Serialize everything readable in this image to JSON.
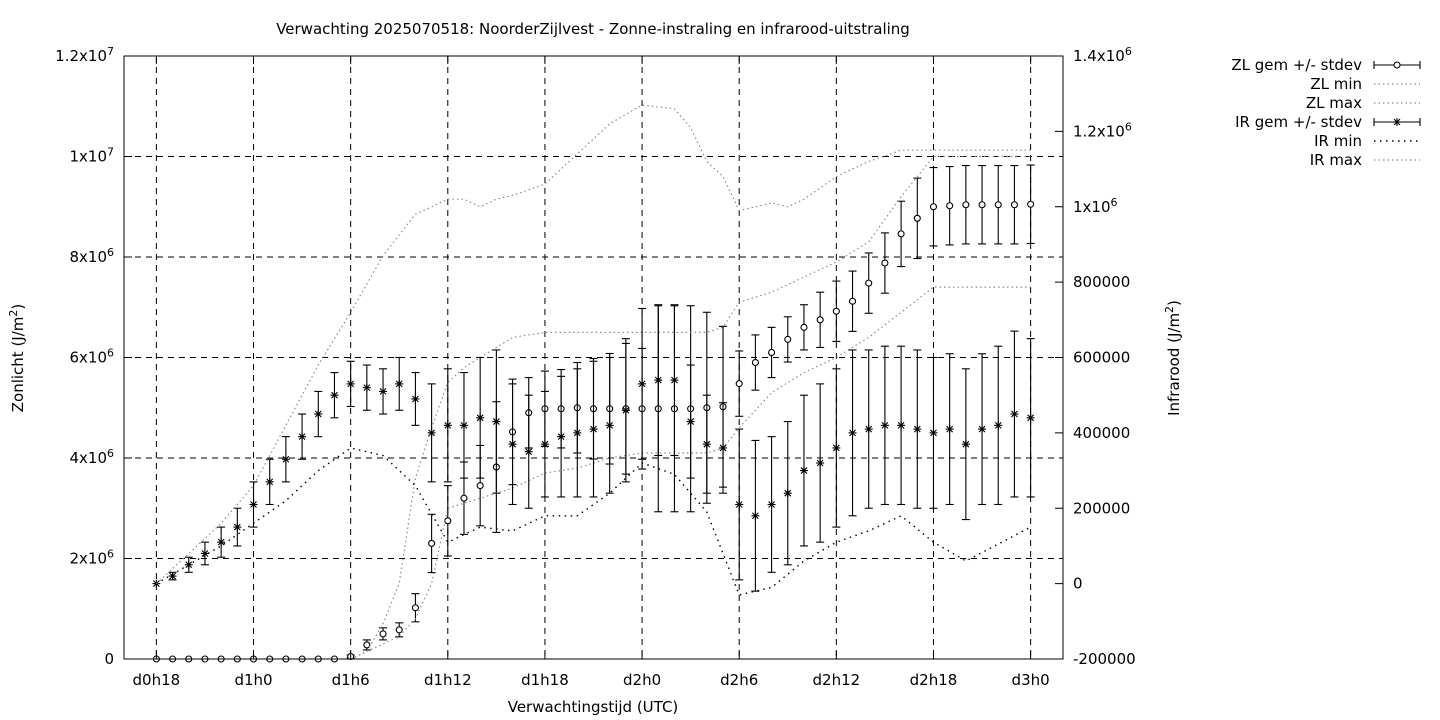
{
  "chart_data": {
    "type": "line",
    "title": "Verwachting 2025070518: NoorderZijlvest - Zonne-instraling en infrarood-uitstraling",
    "xlabel": "Verwachtingstijd (UTC)",
    "ylabel": "Zonlicht (J/m2)",
    "y2label": "Infrarood (J/m2)",
    "x_ticks": [
      "d0h18",
      "d1h0",
      "d1h6",
      "d1h12",
      "d1h18",
      "d2h0",
      "d2h6",
      "d2h12",
      "d2h18",
      "d3h0"
    ],
    "x_range": [
      "d0h16",
      "d3h2"
    ],
    "ylim": [
      0,
      12000000
    ],
    "y2lim": [
      -200000,
      1400000
    ],
    "y_ticks": [
      {
        "value": 0,
        "base": "0",
        "exp": ""
      },
      {
        "value": 2000000,
        "base": "2x10",
        "exp": "6"
      },
      {
        "value": 4000000,
        "base": "4x10",
        "exp": "6"
      },
      {
        "value": 6000000,
        "base": "6x10",
        "exp": "6"
      },
      {
        "value": 8000000,
        "base": "8x10",
        "exp": "6"
      },
      {
        "value": 10000000,
        "base": "1x10",
        "exp": "7"
      },
      {
        "value": 12000000,
        "base": "1.2x10",
        "exp": "7"
      }
    ],
    "y2_ticks": [
      {
        "value": -200000,
        "base": "-200000",
        "exp": ""
      },
      {
        "value": 0,
        "base": "0",
        "exp": ""
      },
      {
        "value": 200000,
        "base": "200000",
        "exp": ""
      },
      {
        "value": 400000,
        "base": "400000",
        "exp": ""
      },
      {
        "value": 600000,
        "base": "600000",
        "exp": ""
      },
      {
        "value": 800000,
        "base": "800000",
        "exp": ""
      },
      {
        "value": 1000000,
        "base": "1x10",
        "exp": "6"
      },
      {
        "value": 1200000,
        "base": "1.2x10",
        "exp": "6"
      },
      {
        "value": 1400000,
        "base": "1.4x10",
        "exp": "6"
      }
    ],
    "grid": true,
    "legend_position": "outside-top-right",
    "series": [
      {
        "name": "ZL gem +/- stdev",
        "axis": "y",
        "marker": "circle",
        "x": [
          "d0h18",
          "d0h19",
          "d0h20",
          "d0h21",
          "d0h22",
          "d0h23",
          "d1h0",
          "d1h1",
          "d1h2",
          "d1h3",
          "d1h4",
          "d1h5",
          "d1h6",
          "d1h7",
          "d1h8",
          "d1h9",
          "d1h10",
          "d1h11",
          "d1h12",
          "d1h13",
          "d1h14",
          "d1h15",
          "d1h16",
          "d1h17",
          "d1h18",
          "d1h19",
          "d1h20",
          "d1h21",
          "d1h22",
          "d1h23",
          "d2h0",
          "d2h1",
          "d2h2",
          "d2h3",
          "d2h4",
          "d2h5",
          "d2h6",
          "d2h7",
          "d2h8",
          "d2h9",
          "d2h10",
          "d2h11",
          "d2h12",
          "d2h13",
          "d2h14",
          "d2h15",
          "d2h16",
          "d2h17",
          "d2h18",
          "d2h19",
          "d2h20",
          "d2h21",
          "d2h22",
          "d2h23",
          "d3h0"
        ],
        "values": [
          0,
          0,
          0,
          0,
          0,
          0,
          0,
          0,
          0,
          0,
          0,
          0,
          50000,
          280000,
          500000,
          580000,
          1020000,
          2300000,
          2750000,
          3200000,
          3450000,
          3820000,
          4520000,
          4900000,
          4980000,
          4980000,
          5000000,
          4980000,
          4980000,
          4980000,
          4980000,
          4980000,
          4980000,
          4980000,
          5000000,
          5020000,
          5480000,
          5900000,
          6100000,
          6360000,
          6600000,
          6750000,
          6920000,
          7120000,
          7480000,
          7880000,
          8460000,
          8770000,
          9000000,
          9020000,
          9040000,
          9040000,
          9040000,
          9040000,
          9050000
        ],
        "stdev": [
          0,
          0,
          0,
          0,
          0,
          0,
          0,
          0,
          0,
          0,
          0,
          0,
          30000,
          100000,
          120000,
          140000,
          280000,
          580000,
          700000,
          720000,
          800000,
          1300000,
          1050000,
          700000,
          750000,
          780000,
          900000,
          1000000,
          1100000,
          1300000,
          1200000,
          2050000,
          2050000,
          2050000,
          1900000,
          1600000,
          650000,
          550000,
          500000,
          450000,
          450000,
          550000,
          600000,
          600000,
          600000,
          600000,
          650000,
          800000,
          780000,
          780000,
          780000,
          780000,
          780000,
          780000,
          780000
        ]
      },
      {
        "name": "ZL min",
        "axis": "y",
        "x": [
          "d1h6",
          "d1h8",
          "d1h9",
          "d1h10",
          "d1h11",
          "d1h12",
          "d1h14",
          "d1h16",
          "d1h18",
          "d1h20",
          "d1h22",
          "d2h0",
          "d2h2",
          "d2h4",
          "d2h5",
          "d2h6",
          "d2h8",
          "d2h10",
          "d2h12",
          "d2h14",
          "d2h16",
          "d2h18",
          "d3h0"
        ],
        "values": [
          0,
          300000,
          450000,
          800000,
          1500000,
          3000000,
          3200000,
          3400000,
          3700000,
          3800000,
          4000000,
          4100000,
          4100000,
          4100000,
          4200000,
          4600000,
          5300000,
          5700000,
          6000000,
          6400000,
          6900000,
          7400000,
          7400000
        ]
      },
      {
        "name": "ZL max",
        "axis": "y",
        "x": [
          "d1h6",
          "d1h7",
          "d1h8",
          "d1h9",
          "d1h10",
          "d1h11",
          "d1h12",
          "d1h13",
          "d1h15",
          "d1h16",
          "d1h18",
          "d1h20",
          "d1h22",
          "d2h0",
          "d2h2",
          "d2h4",
          "d2h5",
          "d2h6",
          "d2h8",
          "d2h10",
          "d2h12",
          "d2h14",
          "d2h16",
          "d2h18",
          "d3h0"
        ],
        "values": [
          0,
          150000,
          700000,
          1500000,
          3600000,
          4600000,
          5500000,
          5800000,
          6200000,
          6400000,
          6500000,
          6500000,
          6500000,
          6500000,
          6500000,
          6500000,
          6600000,
          7100000,
          7300000,
          7600000,
          7900000,
          8300000,
          9200000,
          10000000,
          10000000
        ]
      },
      {
        "name": "IR gem +/- stdev",
        "axis": "y2",
        "marker": "star",
        "x": [
          "d0h18",
          "d0h19",
          "d0h20",
          "d0h21",
          "d0h22",
          "d0h23",
          "d1h0",
          "d1h1",
          "d1h2",
          "d1h3",
          "d1h4",
          "d1h5",
          "d1h6",
          "d1h7",
          "d1h8",
          "d1h9",
          "d1h10",
          "d1h11",
          "d1h12",
          "d1h13",
          "d1h14",
          "d1h15",
          "d1h16",
          "d1h17",
          "d1h18",
          "d1h19",
          "d1h20",
          "d1h21",
          "d1h22",
          "d1h23",
          "d2h0",
          "d2h1",
          "d2h2",
          "d2h3",
          "d2h4",
          "d2h5",
          "d2h6",
          "d2h7",
          "d2h8",
          "d2h9",
          "d2h10",
          "d2h11",
          "d2h12",
          "d2h13",
          "d2h14",
          "d2h15",
          "d2h16",
          "d2h17",
          "d2h18",
          "d2h19",
          "d2h20",
          "d2h21",
          "d2h22",
          "d2h23",
          "d3h0"
        ],
        "values": [
          0,
          20000,
          50000,
          80000,
          110000,
          150000,
          210000,
          270000,
          330000,
          390000,
          450000,
          500000,
          530000,
          520000,
          510000,
          530000,
          490000,
          400000,
          420000,
          420000,
          440000,
          430000,
          370000,
          350000,
          370000,
          390000,
          400000,
          410000,
          420000,
          460000,
          530000,
          540000,
          540000,
          430000,
          370000,
          360000,
          210000,
          180000,
          210000,
          240000,
          300000,
          320000,
          360000,
          400000,
          410000,
          420000,
          420000,
          410000,
          400000,
          410000,
          370000,
          410000,
          420000,
          450000,
          440000
        ],
        "stdev": [
          0,
          10000,
          20000,
          30000,
          40000,
          50000,
          60000,
          60000,
          60000,
          60000,
          60000,
          60000,
          60000,
          60000,
          60000,
          70000,
          70000,
          130000,
          150000,
          140000,
          160000,
          190000,
          160000,
          150000,
          140000,
          160000,
          170000,
          180000,
          180000,
          190000,
          200000,
          200000,
          200000,
          150000,
          130000,
          120000,
          200000,
          200000,
          180000,
          190000,
          200000,
          210000,
          210000,
          220000,
          210000,
          210000,
          210000,
          210000,
          200000,
          200000,
          200000,
          200000,
          210000,
          220000,
          210000
        ]
      },
      {
        "name": "IR min",
        "axis": "y2",
        "x": [
          "d0h18",
          "d0h20",
          "d0h22",
          "d1h0",
          "d1h2",
          "d1h4",
          "d1h6",
          "d1h8",
          "d1h10",
          "d1h12",
          "d1h14",
          "d1h16",
          "d1h18",
          "d1h20",
          "d1h22",
          "d2h0",
          "d2h2",
          "d2h4",
          "d2h6",
          "d2h8",
          "d2h10",
          "d2h12",
          "d2h14",
          "d2h16",
          "d2h18",
          "d2h20",
          "d3h0"
        ],
        "values": [
          0,
          50000,
          100000,
          160000,
          220000,
          300000,
          360000,
          340000,
          260000,
          110000,
          150000,
          140000,
          180000,
          180000,
          240000,
          320000,
          290000,
          190000,
          -30000,
          -10000,
          60000,
          110000,
          140000,
          180000,
          110000,
          60000,
          150000
        ]
      },
      {
        "name": "IR max",
        "axis": "y2",
        "x": [
          "d0h18",
          "d0h20",
          "d0h22",
          "d1h0",
          "d1h2",
          "d1h4",
          "d1h6",
          "d1h8",
          "d1h10",
          "d1h12",
          "d1h13",
          "d1h14",
          "d1h15",
          "d1h16",
          "d1h18",
          "d1h20",
          "d1h22",
          "d2h0",
          "d2h2",
          "d2h3",
          "d2h4",
          "d2h5",
          "d2h6",
          "d2h7",
          "d2h8",
          "d2h9",
          "d2h10",
          "d2h12",
          "d2h14",
          "d2h16",
          "d2h18",
          "d2h20",
          "d3h0"
        ],
        "values": [
          0,
          80000,
          160000,
          260000,
          420000,
          580000,
          720000,
          870000,
          980000,
          1020000,
          1020000,
          1000000,
          1020000,
          1030000,
          1060000,
          1140000,
          1220000,
          1270000,
          1260000,
          1210000,
          1120000,
          1080000,
          990000,
          1000000,
          1010000,
          1000000,
          1020000,
          1080000,
          1120000,
          1150000,
          1150000,
          1150000,
          1150000
        ]
      }
    ]
  }
}
